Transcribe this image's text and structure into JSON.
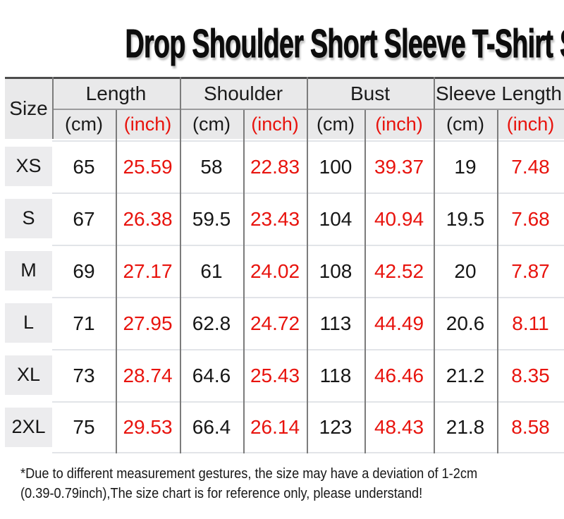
{
  "title": "Drop Shoulder Short Sleeve T-Shirt Size",
  "colors": {
    "accent_red": "#e8130d",
    "header_bg": "#e9e9ea",
    "grid_line": "#7c7c7c",
    "row_separator": "#e2e4e8",
    "top_border": "#4d4d4d"
  },
  "table": {
    "size_header": "Size",
    "unit_cm": "(cm)",
    "unit_inch": "(inch)",
    "groups": [
      {
        "label": "Length"
      },
      {
        "label": "Shoulder"
      },
      {
        "label": "Bust"
      },
      {
        "label": "Sleeve Length"
      }
    ],
    "rows": [
      {
        "size": "XS",
        "length_cm": "65",
        "length_inch": "25.59",
        "shoulder_cm": "58",
        "shoulder_inch": "22.83",
        "bust_cm": "100",
        "bust_inch": "39.37",
        "sleeve_cm": "19",
        "sleeve_inch": "7.48"
      },
      {
        "size": "S",
        "length_cm": "67",
        "length_inch": "26.38",
        "shoulder_cm": "59.5",
        "shoulder_inch": "23.43",
        "bust_cm": "104",
        "bust_inch": "40.94",
        "sleeve_cm": "19.5",
        "sleeve_inch": "7.68"
      },
      {
        "size": "M",
        "length_cm": "69",
        "length_inch": "27.17",
        "shoulder_cm": "61",
        "shoulder_inch": "24.02",
        "bust_cm": "108",
        "bust_inch": "42.52",
        "sleeve_cm": "20",
        "sleeve_inch": "7.87"
      },
      {
        "size": "L",
        "length_cm": "71",
        "length_inch": "27.95",
        "shoulder_cm": "62.8",
        "shoulder_inch": "24.72",
        "bust_cm": "113",
        "bust_inch": "44.49",
        "sleeve_cm": "20.6",
        "sleeve_inch": "8.11"
      },
      {
        "size": "XL",
        "length_cm": "73",
        "length_inch": "28.74",
        "shoulder_cm": "64.6",
        "shoulder_inch": "25.43",
        "bust_cm": "118",
        "bust_inch": "46.46",
        "sleeve_cm": "21.2",
        "sleeve_inch": "8.35"
      },
      {
        "size": "2XL",
        "length_cm": "75",
        "length_inch": "29.53",
        "shoulder_cm": "66.4",
        "shoulder_inch": "26.14",
        "bust_cm": "123",
        "bust_inch": "48.43",
        "sleeve_cm": "21.8",
        "sleeve_inch": "8.58"
      }
    ]
  },
  "footer": {
    "note_line1": "*Due to different measurement gestures, the size may have a deviation of 1-2cm",
    "note_line2": "(0.39-0.79inch),The size chart is for reference only, please understand!"
  },
  "chart_data": {
    "type": "table",
    "title": "Drop Shoulder Short Sleeve T-Shirt Size",
    "column_groups": [
      "Length",
      "Shoulder",
      "Bust",
      "Sleeve Length"
    ],
    "columns": [
      "Size",
      "Length (cm)",
      "Length (inch)",
      "Shoulder (cm)",
      "Shoulder (inch)",
      "Bust (cm)",
      "Bust (inch)",
      "Sleeve Length (cm)",
      "Sleeve Length (inch)"
    ],
    "rows": [
      [
        "XS",
        65,
        25.59,
        58,
        22.83,
        100,
        39.37,
        19,
        7.48
      ],
      [
        "S",
        67,
        26.38,
        59.5,
        23.43,
        104,
        40.94,
        19.5,
        7.68
      ],
      [
        "M",
        69,
        27.17,
        61,
        24.02,
        108,
        42.52,
        20,
        7.87
      ],
      [
        "L",
        71,
        27.95,
        62.8,
        24.72,
        113,
        44.49,
        20.6,
        8.11
      ],
      [
        "XL",
        73,
        28.74,
        64.6,
        25.43,
        118,
        46.46,
        21.2,
        8.35
      ],
      [
        "2XL",
        75,
        29.53,
        66.4,
        26.14,
        123,
        48.43,
        21.8,
        8.58
      ]
    ],
    "note": "*Due to different measurement gestures, the size may have a deviation of 1-2cm (0.39-0.79inch),The size chart is for reference only, please understand!"
  }
}
